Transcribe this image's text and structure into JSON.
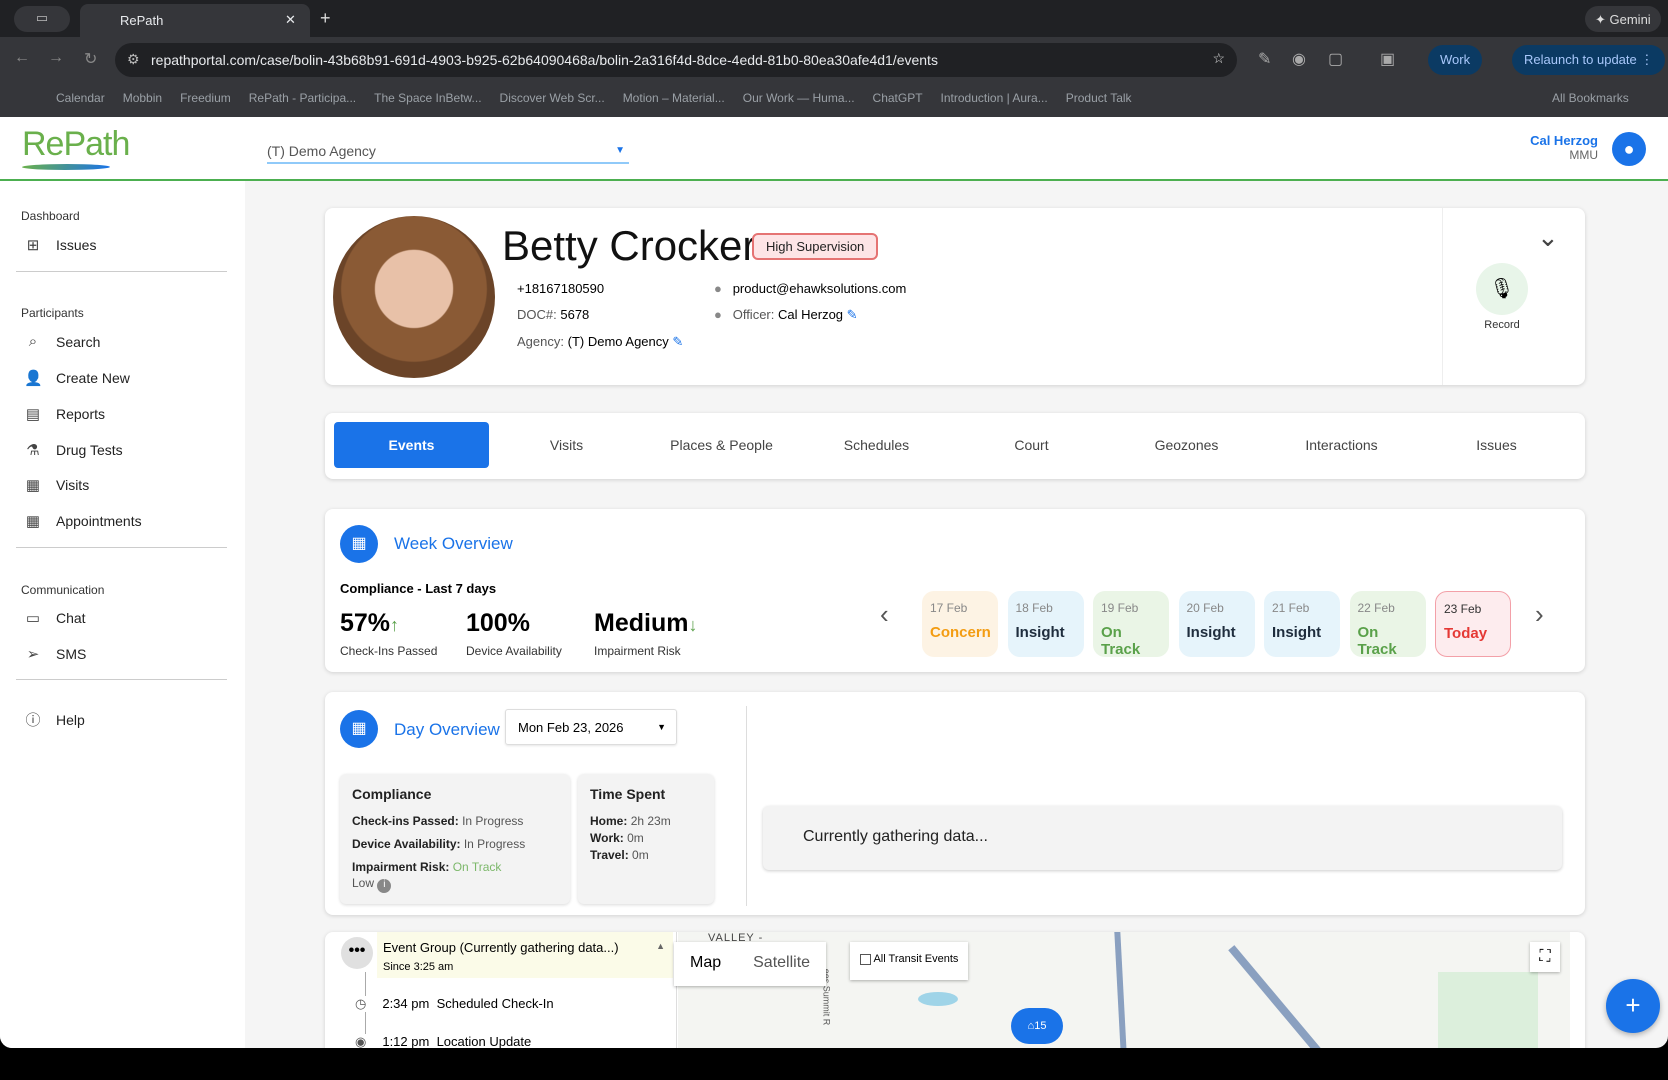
{
  "browser": {
    "tab_title": "RePath",
    "url": "repathportal.com/case/bolin-43b68b91-691d-4903-b925-62b64090468a/bolin-2a316f4d-8dce-4edd-81b0-80ea30afe4d1/events",
    "gemini": "Gemini",
    "profile": "Work",
    "relaunch": "Relaunch to update",
    "bookmarks": [
      "Calendar",
      "Mobbin",
      "Freedium",
      "RePath - Participa...",
      "The Space InBetw...",
      "Discover Web Scr...",
      "Motion – Material...",
      "Our Work — Huma...",
      "ChatGPT",
      "Introduction | Aura...",
      "Product Talk"
    ],
    "all_bookmarks": "All Bookmarks"
  },
  "header": {
    "logo": "RePath",
    "agency_select": "(T) Demo Agency",
    "user_name": "Cal Herzog",
    "user_org": "MMU"
  },
  "sidebar": {
    "sections": [
      {
        "title": "Dashboard",
        "items": [
          {
            "label": "Issues",
            "icon": "grid-icon"
          }
        ]
      },
      {
        "title": "Participants",
        "items": [
          {
            "label": "Search",
            "icon": "search-icon"
          },
          {
            "label": "Create New",
            "icon": "person-add-icon"
          },
          {
            "label": "Reports",
            "icon": "report-icon"
          },
          {
            "label": "Drug Tests",
            "icon": "flask-icon"
          },
          {
            "label": "Visits",
            "icon": "calendar-icon"
          },
          {
            "label": "Appointments",
            "icon": "calendar-event-icon"
          }
        ]
      },
      {
        "title": "Communication",
        "items": [
          {
            "label": "Chat",
            "icon": "chat-icon"
          },
          {
            "label": "SMS",
            "icon": "send-icon"
          }
        ]
      }
    ],
    "help": "Help"
  },
  "profile": {
    "name": "Betty Crocker",
    "badge": "High Supervision",
    "phone": "+18167180590",
    "doc_label": "DOC#:",
    "doc": "5678",
    "agency_label": "Agency:",
    "agency": "(T) Demo Agency",
    "email": "product@ehawksolutions.com",
    "officer_label": "Officer:",
    "officer": "Cal Herzog",
    "record": "Record"
  },
  "tabs": [
    {
      "label": "Events",
      "active": true
    },
    {
      "label": "Visits"
    },
    {
      "label": "Places & People"
    },
    {
      "label": "Schedules"
    },
    {
      "label": "Court"
    },
    {
      "label": "Geozones"
    },
    {
      "label": "Interactions"
    },
    {
      "label": "Issues"
    }
  ],
  "week": {
    "title": "Week Overview",
    "subtitle": "Compliance - Last 7 days",
    "stats": [
      {
        "value": "57%",
        "trend": "↑",
        "label": "Check-Ins Passed"
      },
      {
        "value": "100%",
        "trend": "",
        "label": "Device Availability"
      },
      {
        "value": "Medium",
        "trend": "↓",
        "label": "Impairment Risk"
      }
    ],
    "days": [
      {
        "date": "17 Feb",
        "status": "Concern",
        "color": "#f39c12",
        "bg": "#fdf3e4"
      },
      {
        "date": "18 Feb",
        "status": "Insight",
        "color": "#1f2d3d",
        "bg": "#e6f4fb"
      },
      {
        "date": "19 Feb",
        "status": "On Track",
        "color": "#5aa14a",
        "bg": "#eaf5e6"
      },
      {
        "date": "20 Feb",
        "status": "Insight",
        "color": "#1f2d3d",
        "bg": "#e6f4fb"
      },
      {
        "date": "21 Feb",
        "status": "Insight",
        "color": "#1f2d3d",
        "bg": "#e6f4fb"
      },
      {
        "date": "22 Feb",
        "status": "On Track",
        "color": "#5aa14a",
        "bg": "#eaf5e6"
      },
      {
        "date": "23 Feb",
        "status": "Today",
        "color": "#e53935",
        "bg": "#fdecee"
      }
    ]
  },
  "day": {
    "title": "Day Overview",
    "date": "Mon Feb 23, 2026",
    "compliance": {
      "title": "Compliance",
      "checkins_label": "Check-ins Passed:",
      "checkins": "In Progress",
      "device_label": "Device Availability:",
      "device": "In Progress",
      "risk_label": "Impairment Risk:",
      "risk": "On Track",
      "risk_level": "Low"
    },
    "time": {
      "title": "Time Spent",
      "home_label": "Home:",
      "home": "2h 23m",
      "work_label": "Work:",
      "work": "0m",
      "travel_label": "Travel:",
      "travel": "0m"
    },
    "gathering": "Currently gathering data..."
  },
  "events": {
    "group_title": "Event Group (Currently gathering data...)",
    "group_since": "Since 3:25 am",
    "items": [
      {
        "time": "2:34 pm",
        "label": "Scheduled Check-In",
        "icon": "clock-icon"
      },
      {
        "time": "1:12 pm",
        "label": "Location Update",
        "icon": "location-icon"
      }
    ]
  },
  "map": {
    "map_tab": "Map",
    "satellite_tab": "Satellite",
    "transit_label": "All Transit Events",
    "area_label": "VALLEY -",
    "road_label": "ees Summit R",
    "marker": "15"
  }
}
